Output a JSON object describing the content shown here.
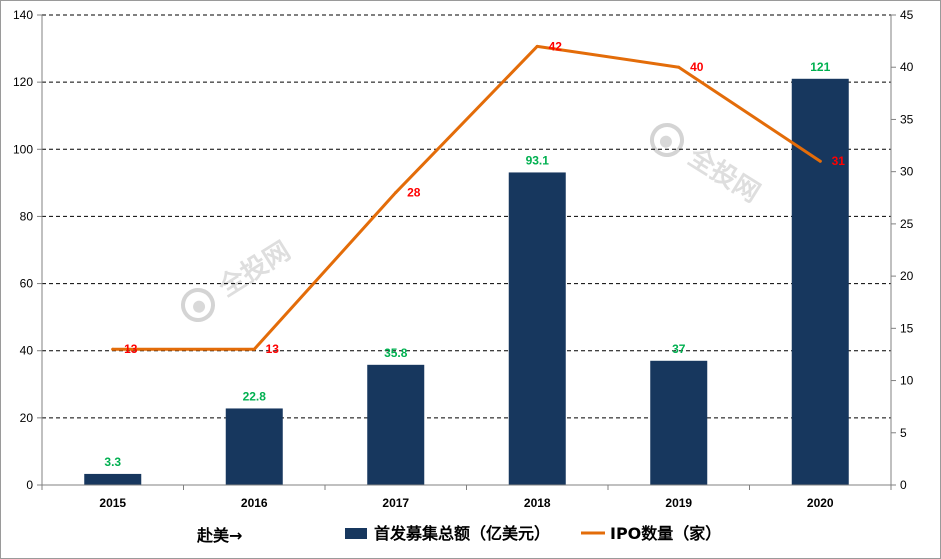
{
  "chart_data": {
    "type": "bar",
    "categories": [
      "2015",
      "2016",
      "2017",
      "2018",
      "2019",
      "2020"
    ],
    "series": [
      {
        "name": "首发募集总额（亿美元）",
        "type": "bar",
        "axis": "left",
        "values": [
          3.3,
          22.8,
          35.8,
          93.1,
          37,
          121
        ],
        "labels": [
          "3.3",
          "22.8",
          "35.8",
          "93.1",
          "37",
          "121"
        ]
      },
      {
        "name": "IPO数量（家）",
        "type": "line",
        "axis": "right",
        "values": [
          13,
          13,
          28,
          42,
          40,
          31
        ],
        "labels": [
          "13",
          "13",
          "28",
          "42",
          "40",
          "31"
        ]
      }
    ],
    "y_left": {
      "min": 0,
      "max": 140,
      "step": 20,
      "ticks": [
        "0",
        "20",
        "40",
        "60",
        "80",
        "100",
        "120",
        "140"
      ]
    },
    "y_right": {
      "min": 0,
      "max": 45,
      "step": 5,
      "ticks": [
        "0",
        "5",
        "10",
        "15",
        "20",
        "25",
        "30",
        "35",
        "40",
        "45"
      ]
    },
    "grid": "dashed-horizontal",
    "legend_position": "bottom",
    "note": "赴美→",
    "colors": {
      "bar": "#17375e",
      "line": "#e36c09",
      "bar_label": "#00b050",
      "line_label": "#ff0000"
    }
  },
  "watermarks": [
    "全投网",
    "全投网"
  ]
}
